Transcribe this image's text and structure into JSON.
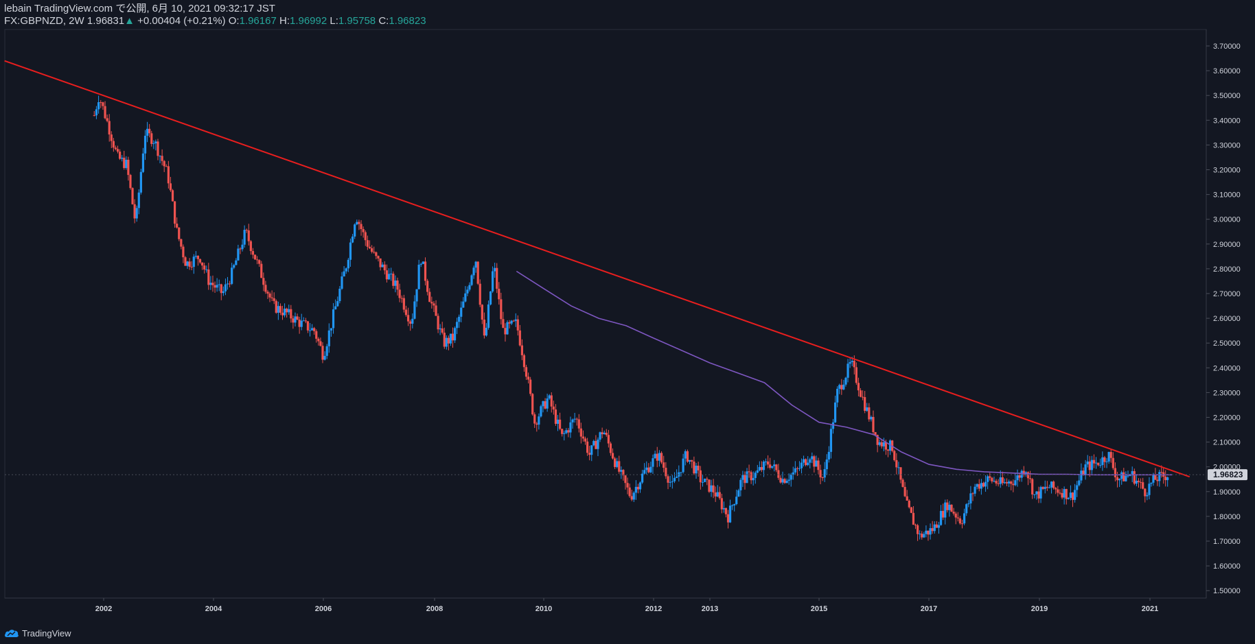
{
  "header": {
    "line1": "lebain TradingView.com で公開, 6月 10, 2021 09:32:17 JST",
    "symbol": "FX:GBPNZD, 2W",
    "last": "1.96831",
    "change_arrow": "▲",
    "change": "+0.00404 (+0.21%)",
    "o_label": "O:",
    "o_value": "1.96167",
    "h_label": "H:",
    "h_value": "1.96992",
    "l_label": "L:",
    "l_value": "1.95758",
    "c_label": "C:",
    "c_value": "1.96823"
  },
  "footer": {
    "brand": "TradingView",
    "logo_icon": "tradingview-cloud-icon"
  },
  "colors": {
    "background": "#131722",
    "up": "#2196f3",
    "down": "#ef5350",
    "trendline": "#e91e1e",
    "ma": "#7e57c2",
    "text": "#d1d4dc",
    "price_tag_bg": "#d1d4dc"
  },
  "chart_data": {
    "type": "candlestick",
    "symbol": "FX:GBPNZD",
    "interval": "2W",
    "y_ticks": [
      "3.70000",
      "3.60000",
      "3.50000",
      "3.40000",
      "3.30000",
      "3.20000",
      "3.10000",
      "3.00000",
      "2.90000",
      "2.80000",
      "2.70000",
      "2.60000",
      "2.50000",
      "2.40000",
      "2.30000",
      "2.20000",
      "2.10000",
      "2.00000",
      "1.90000",
      "1.80000",
      "1.70000",
      "1.60000",
      "1.50000"
    ],
    "ylim": [
      1.5,
      3.7
    ],
    "x_ticks": [
      "2002",
      "2004",
      "2006",
      "2008",
      "2010",
      "2012",
      "2013",
      "2015",
      "2017",
      "2019",
      "2021"
    ],
    "last_price_label": "1.96823",
    "close_path": [
      [
        "2001-11",
        3.42
      ],
      [
        "2001-12",
        3.5
      ],
      [
        "2002-02",
        3.38
      ],
      [
        "2002-04",
        3.25
      ],
      [
        "2002-06",
        3.22
      ],
      [
        "2002-08",
        2.98
      ],
      [
        "2002-10",
        3.35
      ],
      [
        "2002-12",
        3.32
      ],
      [
        "2003-03",
        3.18
      ],
      [
        "2003-05",
        2.95
      ],
      [
        "2003-07",
        2.82
      ],
      [
        "2003-10",
        2.85
      ],
      [
        "2003-12",
        2.75
      ],
      [
        "2004-03",
        2.7
      ],
      [
        "2004-05",
        2.78
      ],
      [
        "2004-08",
        2.95
      ],
      [
        "2004-10",
        2.85
      ],
      [
        "2004-12",
        2.75
      ],
      [
        "2005-02",
        2.65
      ],
      [
        "2005-05",
        2.62
      ],
      [
        "2005-08",
        2.58
      ],
      [
        "2005-11",
        2.55
      ],
      [
        "2006-01",
        2.45
      ],
      [
        "2006-03",
        2.6
      ],
      [
        "2006-06",
        2.82
      ],
      [
        "2006-08",
        3.02
      ],
      [
        "2006-10",
        2.92
      ],
      [
        "2006-12",
        2.85
      ],
      [
        "2007-02",
        2.8
      ],
      [
        "2007-05",
        2.72
      ],
      [
        "2007-08",
        2.58
      ],
      [
        "2007-10",
        2.85
      ],
      [
        "2007-12",
        2.68
      ],
      [
        "2008-03",
        2.5
      ],
      [
        "2008-05",
        2.52
      ],
      [
        "2008-08",
        2.7
      ],
      [
        "2008-10",
        2.85
      ],
      [
        "2008-12",
        2.5
      ],
      [
        "2009-02",
        2.82
      ],
      [
        "2009-04",
        2.55
      ],
      [
        "2009-07",
        2.58
      ],
      [
        "2009-09",
        2.4
      ],
      [
        "2009-11",
        2.18
      ],
      [
        "2010-02",
        2.28
      ],
      [
        "2010-05",
        2.12
      ],
      [
        "2010-08",
        2.2
      ],
      [
        "2010-11",
        2.05
      ],
      [
        "2011-02",
        2.15
      ],
      [
        "2011-05",
        2.0
      ],
      [
        "2011-08",
        1.88
      ],
      [
        "2011-11",
        1.98
      ],
      [
        "2012-02",
        2.05
      ],
      [
        "2012-05",
        1.92
      ],
      [
        "2012-08",
        2.05
      ],
      [
        "2012-11",
        1.95
      ],
      [
        "2013-02",
        1.9
      ],
      [
        "2013-05",
        1.8
      ],
      [
        "2013-08",
        1.95
      ],
      [
        "2013-11",
        1.97
      ],
      [
        "2014-02",
        2.02
      ],
      [
        "2014-05",
        1.95
      ],
      [
        "2014-08",
        1.98
      ],
      [
        "2014-11",
        2.05
      ],
      [
        "2015-02",
        1.95
      ],
      [
        "2015-05",
        2.3
      ],
      [
        "2015-08",
        2.42
      ],
      [
        "2015-11",
        2.25
      ],
      [
        "2016-02",
        2.1
      ],
      [
        "2016-05",
        2.08
      ],
      [
        "2016-08",
        1.85
      ],
      [
        "2016-11",
        1.72
      ],
      [
        "2017-02",
        1.75
      ],
      [
        "2017-05",
        1.85
      ],
      [
        "2017-08",
        1.78
      ],
      [
        "2017-11",
        1.92
      ],
      [
        "2018-02",
        1.95
      ],
      [
        "2018-05",
        1.93
      ],
      [
        "2018-08",
        1.95
      ],
      [
        "2018-10",
        2.0
      ],
      [
        "2018-12",
        1.88
      ],
      [
        "2019-03",
        1.92
      ],
      [
        "2019-06",
        1.9
      ],
      [
        "2019-08",
        1.88
      ],
      [
        "2019-11",
        2.0
      ],
      [
        "2020-02",
        2.02
      ],
      [
        "2020-04",
        2.05
      ],
      [
        "2020-06",
        1.95
      ],
      [
        "2020-09",
        1.97
      ],
      [
        "2020-12",
        1.9
      ],
      [
        "2021-02",
        1.95
      ],
      [
        "2021-05",
        1.968
      ]
    ],
    "moving_average": [
      [
        "2009-07",
        2.79
      ],
      [
        "2010-01",
        2.72
      ],
      [
        "2010-07",
        2.65
      ],
      [
        "2011-01",
        2.6
      ],
      [
        "2011-07",
        2.57
      ],
      [
        "2012-01",
        2.52
      ],
      [
        "2012-07",
        2.47
      ],
      [
        "2013-01",
        2.42
      ],
      [
        "2013-07",
        2.38
      ],
      [
        "2014-01",
        2.34
      ],
      [
        "2014-07",
        2.25
      ],
      [
        "2015-01",
        2.18
      ],
      [
        "2015-07",
        2.16
      ],
      [
        "2016-01",
        2.13
      ],
      [
        "2016-07",
        2.06
      ],
      [
        "2017-01",
        2.01
      ],
      [
        "2017-07",
        1.99
      ],
      [
        "2018-01",
        1.98
      ],
      [
        "2018-07",
        1.975
      ],
      [
        "2019-01",
        1.97
      ],
      [
        "2019-07",
        1.97
      ],
      [
        "2020-01",
        1.968
      ],
      [
        "2020-07",
        1.968
      ],
      [
        "2021-01",
        1.968
      ],
      [
        "2021-06",
        1.968
      ]
    ],
    "trendline": [
      [
        "2000-04",
        3.64
      ],
      [
        "2021-10",
        1.96
      ]
    ]
  }
}
